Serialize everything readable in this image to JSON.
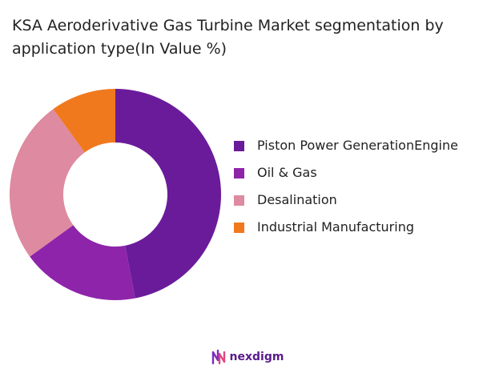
{
  "chart_data": {
    "type": "pie",
    "title": "KSA Aeroderivative Gas Turbine Market segmentation by application type(In Value %)",
    "donut": true,
    "legend_position": "right",
    "categories": [
      "Piston Power GenerationEngine",
      "Oil & Gas",
      "Desalination",
      "Industrial Manufacturing"
    ],
    "values": [
      47,
      18,
      25,
      10
    ],
    "colors": [
      "#6a1b9a",
      "#8e24aa",
      "#de8aa0",
      "#f0791e"
    ]
  },
  "brand": {
    "name": "nexdigm",
    "logo_icon": "nexdigm-logo-icon"
  }
}
